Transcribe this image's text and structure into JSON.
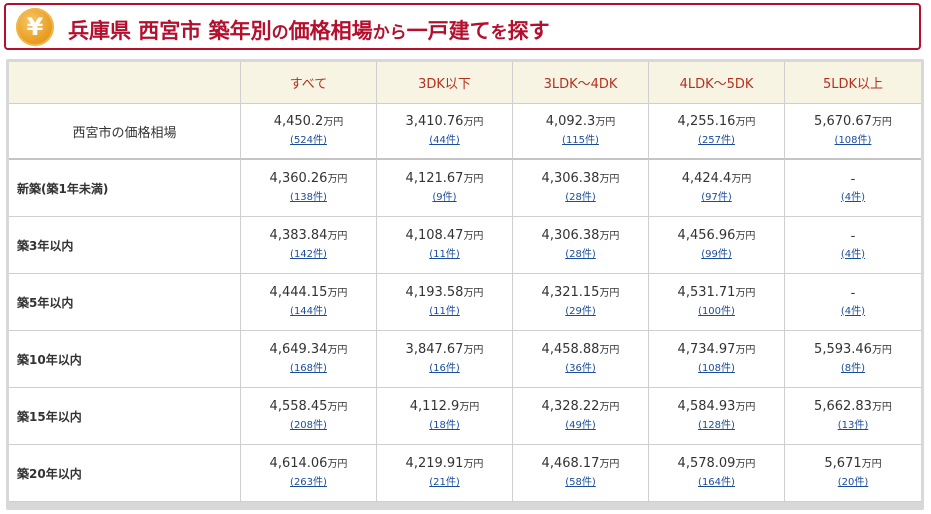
{
  "header": {
    "icon": "yen-coin-icon",
    "icon_glyph": "¥",
    "accent_color": "#b50f2e",
    "title_parts": [
      "兵庫県 西宮市 築年別",
      "の",
      "価格相場",
      "から",
      "一戸建て",
      "を",
      "探す"
    ]
  },
  "table": {
    "columns": [
      "すべて",
      "3DK以下",
      "3LDK～4DK",
      "4LDK～5DK",
      "5LDK以上"
    ],
    "unit": "万円",
    "summary": {
      "label": "西宮市の価格相場",
      "cells": [
        {
          "price": "4,450.2",
          "count": "(524件)"
        },
        {
          "price": "3,410.76",
          "count": "(44件)"
        },
        {
          "price": "4,092.3",
          "count": "(115件)"
        },
        {
          "price": "4,255.16",
          "count": "(257件)"
        },
        {
          "price": "5,670.67",
          "count": "(108件)"
        }
      ]
    },
    "rows": [
      {
        "label": "新築(築1年未満)",
        "cells": [
          {
            "price": "4,360.26",
            "count": "(138件)"
          },
          {
            "price": "4,121.67",
            "count": "(9件)"
          },
          {
            "price": "4,306.38",
            "count": "(28件)"
          },
          {
            "price": "4,424.4",
            "count": "(97件)"
          },
          {
            "price": "-",
            "count": "(4件)"
          }
        ]
      },
      {
        "label": "築3年以内",
        "cells": [
          {
            "price": "4,383.84",
            "count": "(142件)"
          },
          {
            "price": "4,108.47",
            "count": "(11件)"
          },
          {
            "price": "4,306.38",
            "count": "(28件)"
          },
          {
            "price": "4,456.96",
            "count": "(99件)"
          },
          {
            "price": "-",
            "count": "(4件)"
          }
        ]
      },
      {
        "label": "築5年以内",
        "cells": [
          {
            "price": "4,444.15",
            "count": "(144件)"
          },
          {
            "price": "4,193.58",
            "count": "(11件)"
          },
          {
            "price": "4,321.15",
            "count": "(29件)"
          },
          {
            "price": "4,531.71",
            "count": "(100件)"
          },
          {
            "price": "-",
            "count": "(4件)"
          }
        ]
      },
      {
        "label": "築10年以内",
        "cells": [
          {
            "price": "4,649.34",
            "count": "(168件)"
          },
          {
            "price": "3,847.67",
            "count": "(16件)"
          },
          {
            "price": "4,458.88",
            "count": "(36件)"
          },
          {
            "price": "4,734.97",
            "count": "(108件)"
          },
          {
            "price": "5,593.46",
            "count": "(8件)"
          }
        ]
      },
      {
        "label": "築15年以内",
        "cells": [
          {
            "price": "4,558.45",
            "count": "(208件)"
          },
          {
            "price": "4,112.9",
            "count": "(18件)"
          },
          {
            "price": "4,328.22",
            "count": "(49件)"
          },
          {
            "price": "4,584.93",
            "count": "(128件)"
          },
          {
            "price": "5,662.83",
            "count": "(13件)"
          }
        ]
      },
      {
        "label": "築20年以内",
        "cells": [
          {
            "price": "4,614.06",
            "count": "(263件)"
          },
          {
            "price": "4,219.91",
            "count": "(21件)"
          },
          {
            "price": "4,468.17",
            "count": "(58件)"
          },
          {
            "price": "4,578.09",
            "count": "(164件)"
          },
          {
            "price": "5,671",
            "count": "(20件)"
          }
        ]
      }
    ]
  }
}
